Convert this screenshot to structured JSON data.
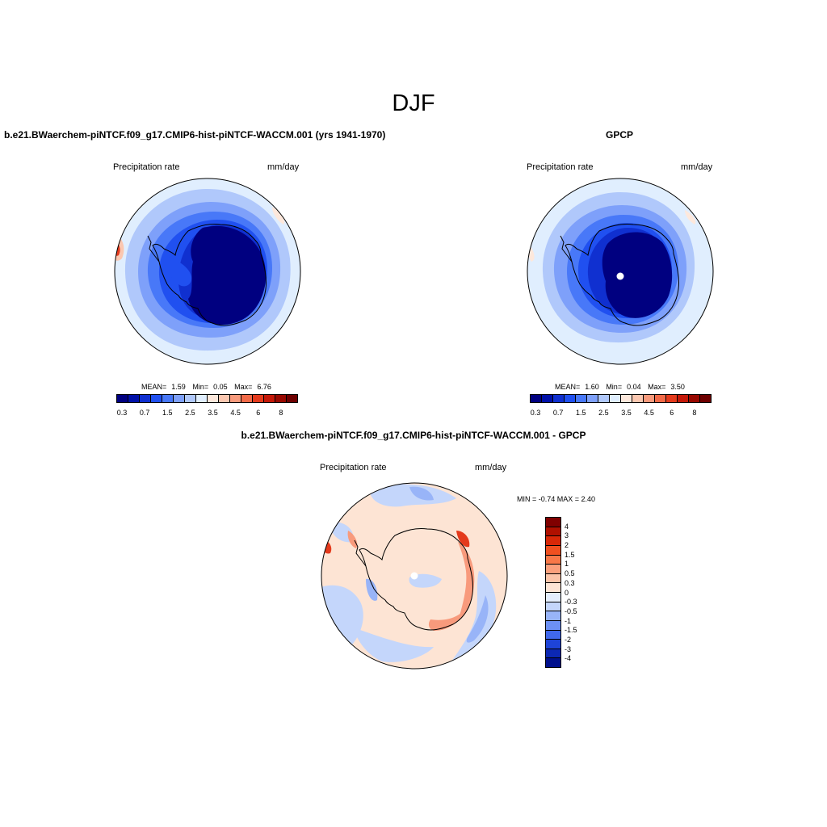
{
  "figure": {
    "title": "DJF",
    "left_panel": {
      "title": "b.e21.BWaerchem-piNTCF.f09_g17.CMIP6-hist-piNTCF-WACCM.001 (yrs 1941-1970)",
      "variable": "Precipitation rate",
      "units": "mm/day",
      "stats": {
        "mean_label": "MEAN=",
        "mean": "1.59",
        "min_label": "Min=",
        "min": "0.05",
        "max_label": "Max=",
        "max": "6.76"
      }
    },
    "right_panel": {
      "title": "GPCP",
      "variable": "Precipitation rate",
      "units": "mm/day",
      "stats": {
        "mean_label": "MEAN=",
        "mean": "1.60",
        "min_label": "Min=",
        "min": "0.04",
        "max_label": "Max=",
        "max": "3.50"
      }
    },
    "bottom_panel": {
      "title": "b.e21.BWaerchem-piNTCF.f09_g17.CMIP6-hist-piNTCF-WACCM.001 - GPCP",
      "variable": "Precipitation rate",
      "units": "mm/day",
      "minmax_text": "MIN =  -0.74 MAX =   2.40"
    }
  },
  "colorbars": {
    "abs": {
      "colors": [
        "#000080",
        "#0010a8",
        "#1030d0",
        "#2050f0",
        "#4878f8",
        "#7ea0fa",
        "#b0c8fb",
        "#e0eefe",
        "#fde8dc",
        "#fbc7b0",
        "#f89a7c",
        "#f26a48",
        "#e43a1c",
        "#c41808",
        "#980800",
        "#6e0000"
      ],
      "labels": [
        "0.3",
        "0.7",
        "1.5",
        "2.5",
        "3.5",
        "4.5",
        "6",
        "8"
      ]
    },
    "diff": {
      "colors": [
        "#800000",
        "#b01000",
        "#d82808",
        "#f05020",
        "#f87848",
        "#fba07c",
        "#fcc4a8",
        "#fde4d4",
        "#e4eefd",
        "#c4d6fb",
        "#98b4f8",
        "#6c90f4",
        "#4068ec",
        "#1e44d8",
        "#0c28b4",
        "#00108c"
      ],
      "labels": [
        "4",
        "3",
        "2",
        "1.5",
        "1",
        "0.5",
        "0.3",
        "0",
        "-0.3",
        "-0.5",
        "-1",
        "-1.5",
        "-2",
        "-3",
        "-4"
      ]
    }
  },
  "map_colors": {
    "abs_rings": [
      "#e0eefe",
      "#b0c8fb",
      "#7ea0fa",
      "#4878f8",
      "#2050f0",
      "#1030d0"
    ],
    "abs_core": "#000080",
    "warm": "#fbc7b0",
    "warm_deep": "#e43a1c",
    "diff_base": "#fde4d4",
    "diff_light_blue": "#c4d6fb",
    "diff_mid_blue": "#98b4f8",
    "diff_orange": "#f89a7c",
    "diff_red": "#e43a1c"
  }
}
